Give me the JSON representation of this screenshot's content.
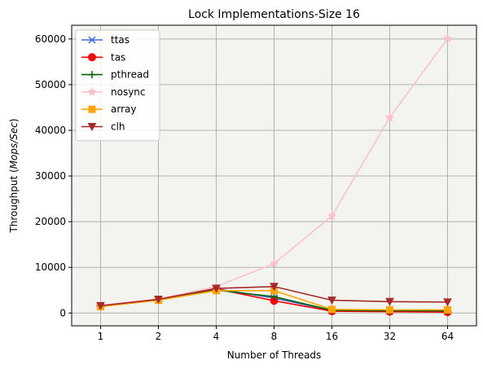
{
  "chart_data": {
    "type": "line",
    "title": "Lock Implementations-Size 16",
    "xlabel": "Number of Threads",
    "ylabel_prefix": "Throughput (",
    "ylabel_italic": "Mops/Sec",
    "ylabel_suffix": ")",
    "categories": [
      "1",
      "2",
      "4",
      "8",
      "16",
      "32",
      "64"
    ],
    "ylim": [
      -2800,
      63000
    ],
    "yticks": [
      0,
      10000,
      20000,
      30000,
      40000,
      50000,
      60000
    ],
    "ytick_labels": [
      "0",
      "10000",
      "20000",
      "30000",
      "40000",
      "50000",
      "60000"
    ],
    "grid": true,
    "legend_position": "top-left",
    "series": [
      {
        "name": "ttas",
        "color": "#4169e1",
        "marker": "x",
        "values": [
          1600,
          2900,
          5300,
          3300,
          500,
          400,
          400
        ]
      },
      {
        "name": "tas",
        "color": "#ff0000",
        "marker": "o",
        "values": [
          1600,
          2900,
          5300,
          2700,
          400,
          300,
          200
        ]
      },
      {
        "name": "pthread",
        "color": "#006400",
        "marker": "+",
        "values": [
          1600,
          2900,
          5000,
          3600,
          600,
          500,
          500
        ]
      },
      {
        "name": "nosync",
        "color": "#ffc0cb",
        "marker": "*",
        "values": [
          1700,
          3100,
          5800,
          10800,
          21300,
          42800,
          60100
        ]
      },
      {
        "name": "array",
        "color": "#ffa500",
        "marker": "s",
        "values": [
          1400,
          2800,
          4900,
          4900,
          800,
          700,
          700
        ]
      },
      {
        "name": "clh",
        "color": "#a52a2a",
        "marker": "v",
        "values": [
          1600,
          3000,
          5400,
          5800,
          2800,
          2500,
          2400
        ]
      }
    ]
  }
}
